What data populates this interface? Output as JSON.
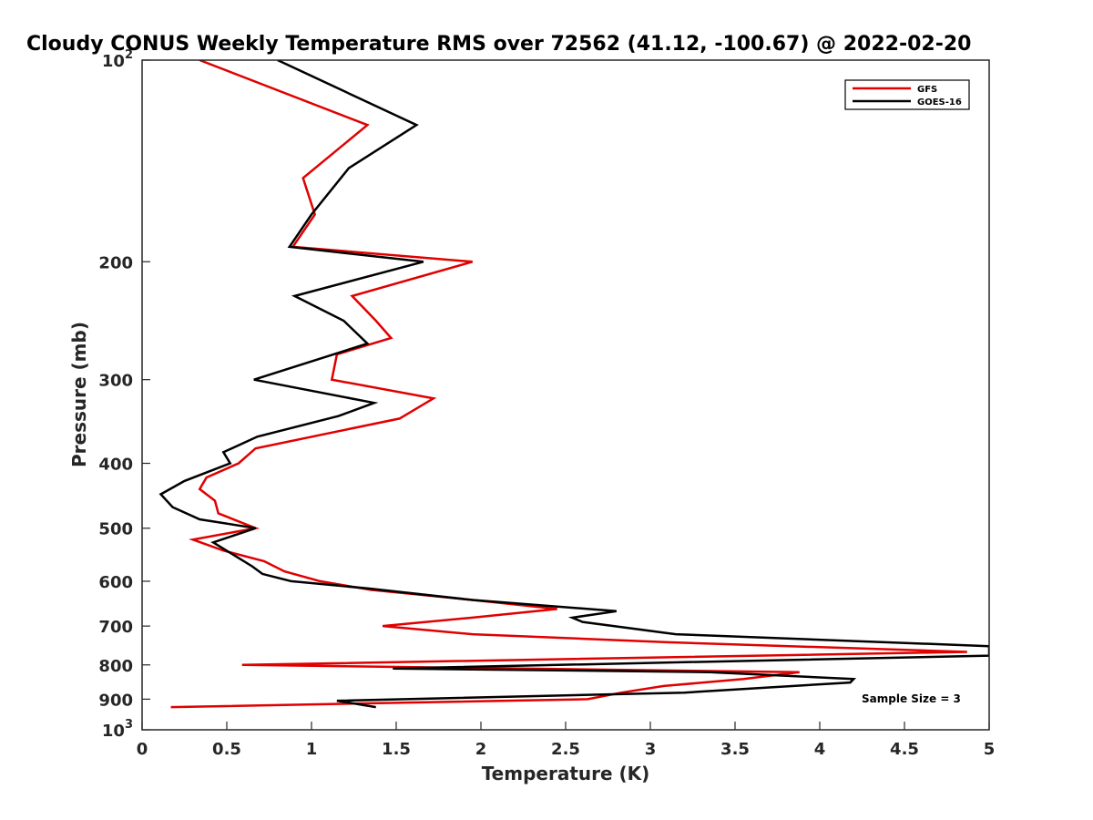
{
  "chart_data": {
    "type": "line",
    "title": "Cloudy CONUS Weekly Temperature RMS over 72562 (41.12, -100.67) @ 2022-02-20",
    "xlabel": "Temperature (K)",
    "ylabel": "Pressure (mb)",
    "xlim": [
      0,
      5
    ],
    "ylim": [
      100,
      1000
    ],
    "yscale": "log",
    "y_reversed": true,
    "grid": false,
    "legend_position": "top-right",
    "x_ticks": [
      "0",
      "0.5",
      "1",
      "1.5",
      "2",
      "2.5",
      "3",
      "3.5",
      "4",
      "4.5",
      "5"
    ],
    "y_ticks": [
      {
        "value": 100,
        "base": "10",
        "exp": "2"
      },
      {
        "value": 200,
        "label": "200"
      },
      {
        "value": 300,
        "label": "300"
      },
      {
        "value": 400,
        "label": "400"
      },
      {
        "value": 500,
        "label": "500"
      },
      {
        "value": 600,
        "label": "600"
      },
      {
        "value": 700,
        "label": "700"
      },
      {
        "value": 800,
        "label": "800"
      },
      {
        "value": 900,
        "label": "900"
      },
      {
        "value": 1000,
        "base": "10",
        "exp": "3"
      }
    ],
    "annotation": "Sample Size = 3",
    "series": [
      {
        "name": "GFS",
        "color": "#e00000",
        "points": [
          [
            0.34,
            100
          ],
          [
            1.33,
            125
          ],
          [
            0.95,
            150
          ],
          [
            1.02,
            170
          ],
          [
            0.89,
            190
          ],
          [
            1.95,
            200
          ],
          [
            1.24,
            225
          ],
          [
            1.38,
            245
          ],
          [
            1.47,
            260
          ],
          [
            1.15,
            275
          ],
          [
            1.12,
            300
          ],
          [
            1.72,
            320
          ],
          [
            1.52,
            343
          ],
          [
            0.67,
            380
          ],
          [
            0.57,
            400
          ],
          [
            0.38,
            420
          ],
          [
            0.34,
            437
          ],
          [
            0.43,
            455
          ],
          [
            0.45,
            475
          ],
          [
            0.67,
            500
          ],
          [
            0.3,
            520
          ],
          [
            0.48,
            540
          ],
          [
            0.72,
            560
          ],
          [
            0.84,
            580
          ],
          [
            1.05,
            600
          ],
          [
            1.35,
            618
          ],
          [
            1.95,
            640
          ],
          [
            2.45,
            660
          ],
          [
            1.95,
            680
          ],
          [
            1.42,
            700
          ],
          [
            1.95,
            720
          ],
          [
            3.1,
            740
          ],
          [
            4.87,
            765
          ],
          [
            0.59,
            800
          ],
          [
            3.88,
            820
          ],
          [
            3.55,
            840
          ],
          [
            3.08,
            860
          ],
          [
            2.83,
            880
          ],
          [
            2.63,
            900
          ],
          [
            0.17,
            925
          ]
        ]
      },
      {
        "name": "GOES-16",
        "color": "#000000",
        "points": [
          [
            0.8,
            100
          ],
          [
            1.62,
            125
          ],
          [
            1.22,
            145
          ],
          [
            1.0,
            170
          ],
          [
            0.87,
            190
          ],
          [
            1.66,
            200
          ],
          [
            0.9,
            225
          ],
          [
            1.19,
            245
          ],
          [
            1.33,
            265
          ],
          [
            0.66,
            300
          ],
          [
            1.37,
            325
          ],
          [
            1.16,
            340
          ],
          [
            0.68,
            365
          ],
          [
            0.48,
            385
          ],
          [
            0.52,
            400
          ],
          [
            0.25,
            425
          ],
          [
            0.11,
            445
          ],
          [
            0.18,
            465
          ],
          [
            0.34,
            485
          ],
          [
            0.67,
            500
          ],
          [
            0.42,
            525
          ],
          [
            0.55,
            550
          ],
          [
            0.65,
            570
          ],
          [
            0.71,
            585
          ],
          [
            0.88,
            600
          ],
          [
            1.33,
            615
          ],
          [
            1.95,
            640
          ],
          [
            2.8,
            665
          ],
          [
            2.54,
            680
          ],
          [
            2.6,
            690
          ],
          [
            3.15,
            720
          ],
          [
            5.0,
            750
          ],
          [
            5.0,
            775
          ],
          [
            1.48,
            810
          ],
          [
            3.35,
            820
          ],
          [
            4.2,
            840
          ],
          [
            4.18,
            850
          ],
          [
            3.2,
            880
          ],
          [
            1.15,
            905
          ],
          [
            1.38,
            925
          ]
        ]
      }
    ]
  }
}
